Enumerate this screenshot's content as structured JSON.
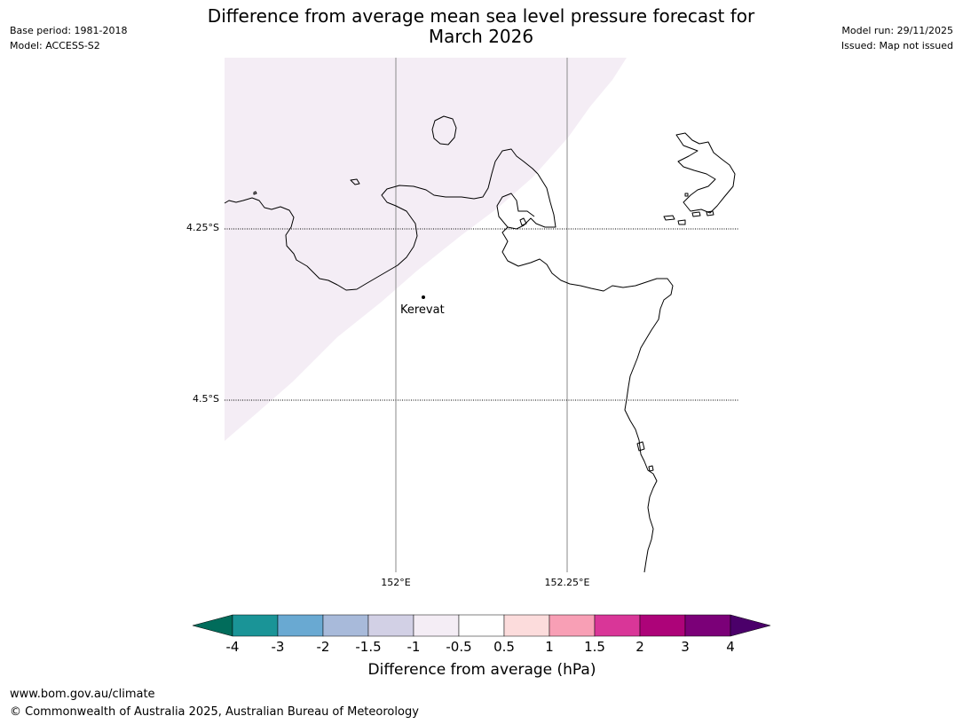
{
  "title_line1": "Difference from average mean sea level pressure forecast for",
  "title_line2": "March 2026",
  "meta_left": {
    "base_period": "Base period: 1981-2018",
    "model": "Model: ACCESS-S2"
  },
  "meta_right": {
    "model_run": "Model run: 29/11/2025",
    "issued": "Issued: Map not issued"
  },
  "map": {
    "lat_labels": [
      "4.25°S",
      "4.5°S"
    ],
    "lon_labels": [
      "152°E",
      "152.25°E"
    ],
    "town": "Kerevat",
    "shading_color": "#f4edf5",
    "coast_color": "#000000"
  },
  "colorbar": {
    "ticks": [
      "-4",
      "-3",
      "-2",
      "-1.5",
      "-1",
      "-0.5",
      "0.5",
      "1",
      "1.5",
      "2",
      "3",
      "4"
    ],
    "colors": [
      "#1a9497",
      "#69a9d2",
      "#a8bada",
      "#d2d0e5",
      "#f4edf5",
      "#ffffff",
      "#fcdcdc",
      "#f89fb5",
      "#d93698",
      "#ad0379",
      "#7b0078"
    ],
    "under_color": "#016c5b",
    "over_color": "#4b006a",
    "label": "Difference from average (hPa)"
  },
  "footer": {
    "url": "www.bom.gov.au/climate",
    "copyright": "© Commonwealth of Australia 2025, Australian Bureau of Meteorology"
  }
}
